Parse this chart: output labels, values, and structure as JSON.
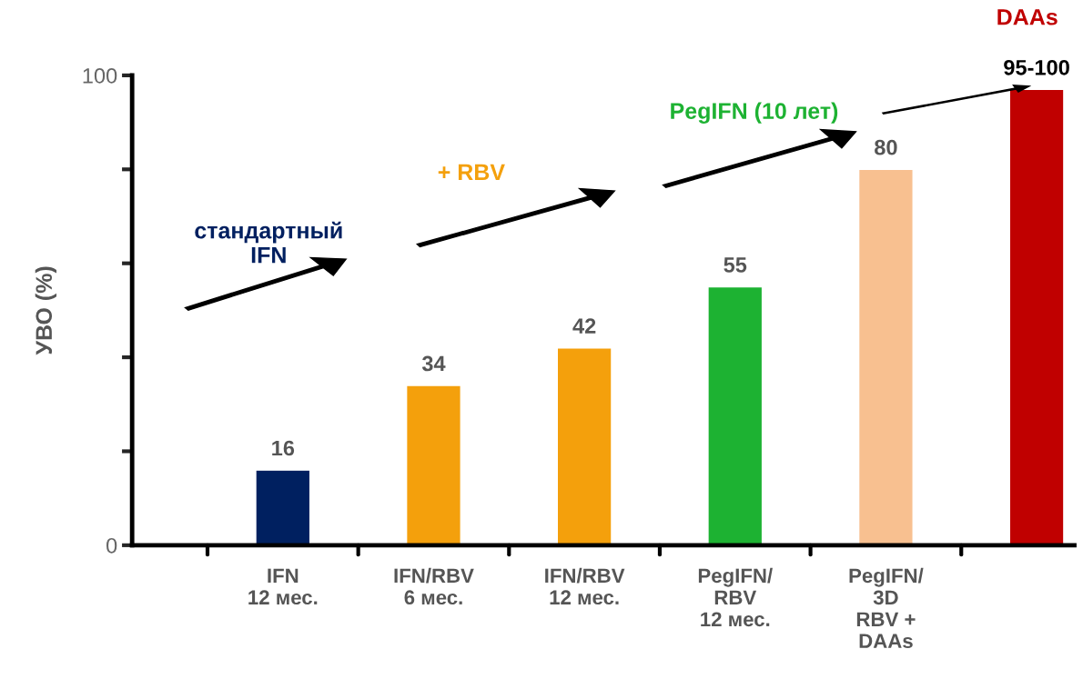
{
  "chart_data": {
    "type": "bar",
    "ylabel": "УВО (%)",
    "categories": [
      "IFN\n12 мес.",
      "IFN/RBV\n6 мес.",
      "IFN/RBV\n12 мес.",
      "PegIFN/\nRBV\n12 мес.",
      "PegIFN/\n3D\nRBV +\nDAAs",
      null
    ],
    "values": [
      16,
      34,
      42,
      55,
      80,
      97
    ],
    "colors": [
      "#002060",
      "#f4a00c",
      "#f4a00c",
      "#1db232",
      "#f8c090",
      "#c00000"
    ],
    "value_labels": [
      "16",
      "34",
      "42",
      "55",
      "80",
      "95-100"
    ],
    "ylim": [
      0,
      100
    ],
    "yticks": [
      0,
      {
        "value": 20,
        "label": null
      },
      {
        "value": 40,
        "label": null
      },
      {
        "value": 60,
        "label": null
      },
      {
        "value": 80,
        "label": null
      },
      100
    ],
    "annotations": [
      "стандартный\nIFN",
      "+ RBV",
      "PegIFN (10 лет)",
      "DAAs"
    ],
    "grid": false,
    "legend": false
  }
}
